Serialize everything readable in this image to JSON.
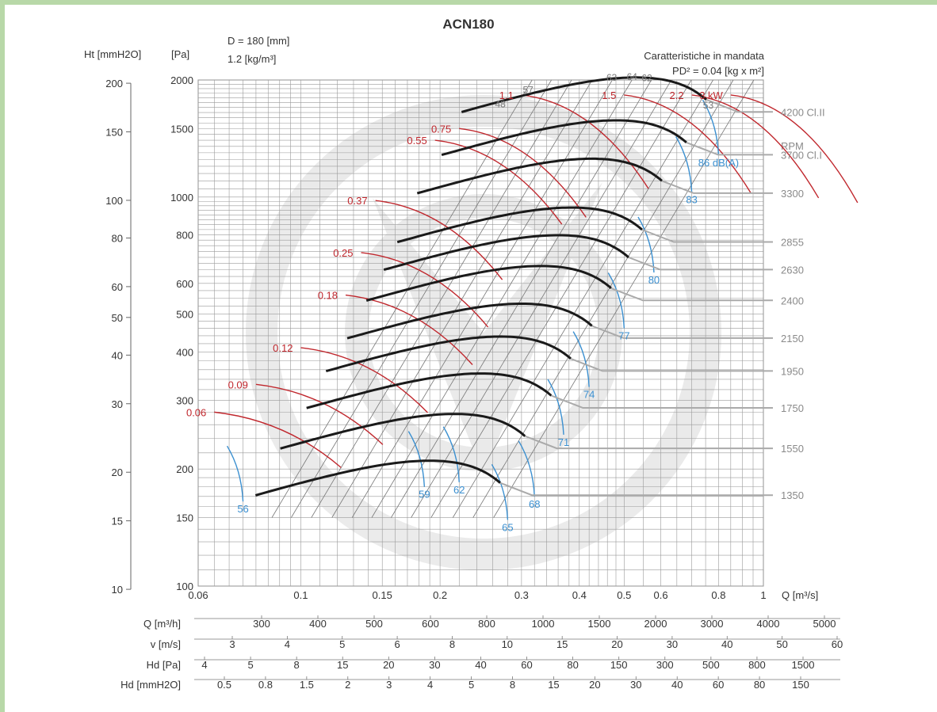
{
  "chart_data": {
    "type": "line",
    "title": "ACN180",
    "parameters": [
      "D = 180 [mm]",
      "1.2 [kg/m³]"
    ],
    "note": "Caratteristiche in mandata",
    "pd2": "PD² = 0.04 [kg x m²]",
    "xlabel": "Q [m³/s]",
    "ylabel_pa": "[Pa]",
    "ylabel_mm": "Ht [mmH2O]",
    "x_scale": "log",
    "y_scale": "log",
    "xlim": [
      0.06,
      1
    ],
    "ylim_pa": [
      100,
      2000
    ],
    "x_ticks": [
      0.06,
      0.1,
      0.15,
      0.2,
      0.3,
      0.4,
      0.5,
      0.6,
      0.8,
      1
    ],
    "x_tick_labels": [
      "0.06",
      "0.1",
      "0.15",
      "0.2",
      "0.3",
      "0.4",
      "0.5",
      "0.6",
      "0.8",
      "1"
    ],
    "y_pa_ticks": [
      100,
      150,
      200,
      300,
      400,
      500,
      600,
      800,
      1000,
      1500,
      2000
    ],
    "y_pa_tick_labels": [
      "100",
      "150",
      "200",
      "300",
      "400",
      "500",
      "600",
      "800",
      "1000",
      "1500",
      "2000"
    ],
    "y_mm_ticks": [
      10,
      15,
      20,
      30,
      40,
      50,
      60,
      80,
      100,
      150,
      200
    ],
    "y_mm_tick_labels": [
      "10",
      "15",
      "20",
      "30",
      "40",
      "50",
      "60",
      "80",
      "100",
      "150",
      "200"
    ],
    "rpm_header": "RPM",
    "rpm_series": [
      {
        "name": "1350",
        "peak_q": 0.19,
        "peak_p": 210
      },
      {
        "name": "1550",
        "peak_q": 0.215,
        "peak_p": 277
      },
      {
        "name": "1750",
        "peak_q": 0.245,
        "peak_p": 352
      },
      {
        "name": "1950",
        "peak_q": 0.27,
        "peak_p": 438
      },
      {
        "name": "2150",
        "peak_q": 0.3,
        "peak_p": 532
      },
      {
        "name": "2400",
        "peak_q": 0.33,
        "peak_p": 665
      },
      {
        "name": "2630",
        "peak_q": 0.36,
        "peak_p": 798
      },
      {
        "name": "2855",
        "peak_q": 0.385,
        "peak_p": 940
      },
      {
        "name": "3300",
        "peak_q": 0.425,
        "peak_p": 1255
      },
      {
        "name": "3700 Cl.I",
        "peak_q": 0.48,
        "peak_p": 1575
      },
      {
        "name": "4200 Cl.II",
        "peak_q": 0.53,
        "peak_p": 2030
      }
    ],
    "power_labels": [
      "0.06",
      "0.09",
      "0.12",
      "0.18",
      "0.25",
      "0.37",
      "0.55",
      "0.75",
      "1.1",
      "1.5",
      "2.2",
      "3 kW"
    ],
    "noise_labels": [
      "56",
      "59",
      "62",
      "65",
      "68",
      "71",
      "74",
      "77",
      "80",
      "83",
      "86 dB(A)"
    ],
    "efficiency_labels": [
      "48",
      "57",
      "63",
      "64",
      "62",
      "53"
    ],
    "secondary_scales": [
      {
        "label": "Q [m³/h]",
        "ticks": [
          "300",
          "400",
          "500",
          "600",
          "800",
          "1000",
          "1500",
          "2000",
          "3000",
          "4000",
          "5000"
        ]
      },
      {
        "label": "v [m/s]",
        "ticks": [
          "3",
          "4",
          "5",
          "6",
          "8",
          "10",
          "15",
          "20",
          "30",
          "40",
          "50",
          "60"
        ]
      },
      {
        "label": "Hd [Pa]",
        "ticks": [
          "4",
          "5",
          "8",
          "15",
          "20",
          "30",
          "40",
          "60",
          "80",
          "150",
          "300",
          "500",
          "800",
          "1500"
        ]
      },
      {
        "label": "Hd [mmH2O]",
        "ticks": [
          "0.5",
          "0.8",
          "1.5",
          "2",
          "3",
          "4",
          "5",
          "8",
          "15",
          "20",
          "30",
          "40",
          "60",
          "80",
          "150"
        ]
      }
    ]
  }
}
